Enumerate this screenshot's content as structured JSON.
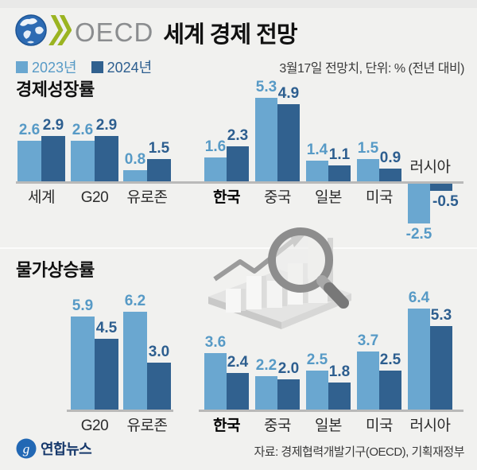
{
  "header": {
    "logo_text": "OECD",
    "title": "세계 경제 전망",
    "note": "3월17일 전망치, 단위: % (전년 대비)"
  },
  "legend": {
    "items": [
      {
        "label": "2023년",
        "color": "#6aa7d0",
        "text_color": "#579ac6"
      },
      {
        "label": "2024년",
        "color": "#31618f",
        "text_color": "#2d5e8f"
      }
    ]
  },
  "chart_data": [
    {
      "type": "bar",
      "title": "경제성장률",
      "unit": "%",
      "categories": [
        "세계",
        "G20",
        "유로존",
        "한국",
        "중국",
        "일본",
        "미국",
        "러시아"
      ],
      "series": [
        {
          "name": "2023년",
          "values": [
            2.6,
            2.6,
            0.8,
            1.6,
            5.3,
            1.4,
            1.5,
            -2.5
          ]
        },
        {
          "name": "2024년",
          "values": [
            2.9,
            2.9,
            1.5,
            2.3,
            4.9,
            1.1,
            0.9,
            -0.5
          ]
        }
      ],
      "highlighted_category": "한국",
      "ylim": [
        -2.5,
        5.3
      ],
      "grid": false,
      "legend_position": "top-left"
    },
    {
      "type": "bar",
      "title": "물가상승률",
      "unit": "%",
      "categories": [
        "G20",
        "유로존",
        "한국",
        "중국",
        "일본",
        "미국",
        "러시아"
      ],
      "series": [
        {
          "name": "2023년",
          "values": [
            5.9,
            6.2,
            3.6,
            2.2,
            2.5,
            3.7,
            6.4
          ]
        },
        {
          "name": "2024년",
          "values": [
            4.5,
            3.0,
            2.4,
            2.0,
            1.8,
            2.5,
            5.3
          ]
        }
      ],
      "highlighted_category": "한국",
      "ylim": [
        0,
        6.4
      ],
      "grid": false,
      "legend_position": "top-left"
    }
  ],
  "footer": {
    "brand": "연합뉴스",
    "source": "자료: 경제협력개발기구(OECD), 기획재정부"
  },
  "icons": {
    "globe": "globe-icon",
    "chevrons": "oecd-chevrons-icon",
    "magnifier": "magnifier-chart-illustration",
    "yonhap": "yonhap-logo-icon"
  },
  "colors": {
    "background": "#f1f1ef",
    "bar_2023": "#6aa7d0",
    "bar_2024": "#31618f",
    "baseline_grey": "#b9b9b9",
    "oecd_grey": "#8b8d8f",
    "chevron_green": "#9bb421",
    "globe_blue": "#2d6bb3",
    "yonhap_blue": "#2268b4",
    "yonhap_text_navy": "#16386b"
  }
}
